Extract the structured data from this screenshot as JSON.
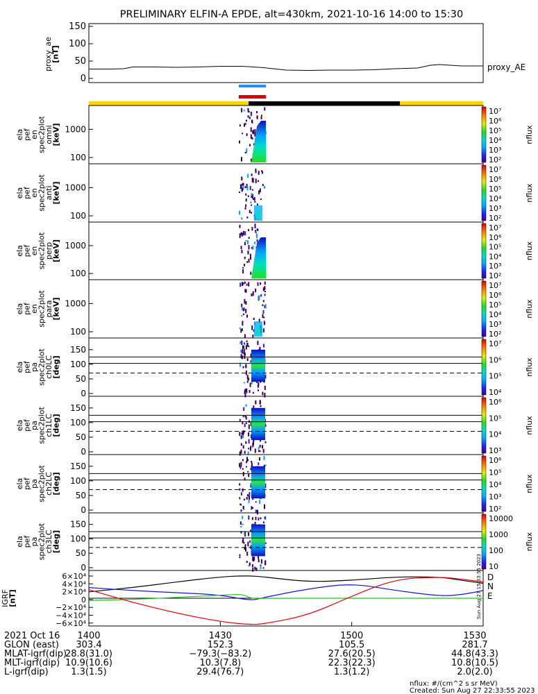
{
  "title": "PRELIMINARY ELFIN-A EPDE, alt=430km, 2021-10-16 14:00 to 15:30",
  "chart_data": [
    {
      "type": "line",
      "id": "proxy_ae",
      "ylabel": [
        "proxy_ae",
        "[nT]"
      ],
      "yticks": [
        "150",
        "100",
        "50",
        "0"
      ],
      "ylim": [
        0,
        150
      ],
      "legend": "proxy_AE",
      "x": [
        1400,
        1405,
        1408,
        1410,
        1415,
        1420,
        1425,
        1430,
        1435,
        1440,
        1445,
        1450,
        1455,
        1500,
        1505,
        1510,
        1515,
        1518,
        1520,
        1525,
        1530
      ],
      "y": [
        27,
        27,
        28,
        33,
        33,
        32,
        33,
        35,
        35,
        31,
        24,
        23,
        24,
        24,
        25,
        28,
        30,
        38,
        40,
        36,
        36
      ]
    },
    {
      "type": "heatmap",
      "id": "en_omni",
      "ylabel": [
        "ela",
        "pef",
        "en",
        "spec2plot",
        "omni",
        "[keV]"
      ],
      "yticks": [
        "1000",
        "100"
      ],
      "ylim": [
        60,
        7000
      ],
      "colorbar": {
        "label": "nflux",
        "ticks": [
          "10⁷",
          "10⁶",
          "10⁵",
          "10⁴",
          "10³",
          "10²"
        ]
      }
    },
    {
      "type": "heatmap",
      "id": "en_anti",
      "ylabel": [
        "ela",
        "pef",
        "en",
        "spec2plot",
        "anti",
        "[keV]"
      ],
      "yticks": [
        "1000",
        "100"
      ],
      "ylim": [
        60,
        7000
      ],
      "colorbar": {
        "label": "nflux",
        "ticks": [
          "10⁷",
          "10⁶",
          "10⁵",
          "10⁴",
          "10³",
          "10²"
        ]
      }
    },
    {
      "type": "heatmap",
      "id": "en_perp",
      "ylabel": [
        "ela",
        "pef",
        "en",
        "spec2plot",
        "perp",
        "[keV]"
      ],
      "yticks": [
        "1000",
        "100"
      ],
      "ylim": [
        60,
        7000
      ],
      "colorbar": {
        "label": "nflux",
        "ticks": [
          "10⁷",
          "10⁶",
          "10⁵",
          "10⁴",
          "10³",
          "10²"
        ]
      }
    },
    {
      "type": "heatmap",
      "id": "en_para",
      "ylabel": [
        "ela",
        "pef",
        "en",
        "spec2plot",
        "para",
        "[keV]"
      ],
      "yticks": [
        "1000",
        "100"
      ],
      "ylim": [
        60,
        7000
      ],
      "colorbar": {
        "label": "nflux",
        "ticks": [
          "10⁷",
          "10⁶",
          "10⁵",
          "10⁴",
          "10³",
          "10²"
        ]
      }
    },
    {
      "type": "heatmap",
      "id": "pa_ch0",
      "ylabel": [
        "ela",
        "pef",
        "pa",
        "spec2plot",
        "ch0LC",
        "[deg]"
      ],
      "yticks": [
        "150",
        "100",
        "50",
        "0"
      ],
      "ylim": [
        0,
        180
      ],
      "colorbar": {
        "label": "nflux",
        "ticks": [
          "10⁷",
          "10⁶",
          "10⁵",
          "10⁴"
        ]
      }
    },
    {
      "type": "heatmap",
      "id": "pa_ch1",
      "ylabel": [
        "ela",
        "pef",
        "pa",
        "spec2plot",
        "ch1LC",
        "[deg]"
      ],
      "yticks": [
        "150",
        "100",
        "50",
        "0"
      ],
      "ylim": [
        0,
        180
      ],
      "colorbar": {
        "label": "nflux",
        "ticks": [
          "10⁶",
          "10⁵",
          "10⁴",
          "10³"
        ]
      }
    },
    {
      "type": "heatmap",
      "id": "pa_ch2",
      "ylabel": [
        "ela",
        "pef",
        "pa",
        "spec2plot",
        "ch2LC",
        "[deg]"
      ],
      "yticks": [
        "150",
        "100",
        "50",
        "0"
      ],
      "ylim": [
        0,
        180
      ],
      "colorbar": {
        "label": "nflux",
        "ticks": [
          "10⁶",
          "10⁵",
          "10⁴",
          "10³",
          "10²"
        ]
      }
    },
    {
      "type": "heatmap",
      "id": "pa_ch3",
      "ylabel": [
        "ela",
        "pef",
        "pa",
        "spec2plot",
        "ch3LC",
        "[deg]"
      ],
      "yticks": [
        "150",
        "100",
        "50",
        "0"
      ],
      "ylim": [
        0,
        180
      ],
      "colorbar": {
        "label": "nflux",
        "ticks": [
          "10000",
          "1000",
          "100",
          "10"
        ]
      }
    },
    {
      "type": "line",
      "id": "igrf",
      "ylabel": [
        "IGRF",
        "[nT]"
      ],
      "yticks": [
        "6×10⁴",
        "4×10⁴",
        "2×10⁴",
        "0",
        "−2×10⁴",
        "−4×10⁴",
        "−6×10⁴"
      ],
      "ylim": [
        -65000,
        65000
      ],
      "series": [
        {
          "name": "D",
          "color": "#000000",
          "x": [
            1400,
            1410,
            1420,
            1430,
            1436,
            1440,
            1450,
            1500,
            1510,
            1520,
            1525,
            1530
          ],
          "y": [
            15000,
            25000,
            38000,
            50000,
            53000,
            50000,
            38000,
            42000,
            50000,
            50000,
            42000,
            35000
          ]
        },
        {
          "name": "N",
          "color": "#1010e0",
          "x": [
            1400,
            1410,
            1420,
            1430,
            1437,
            1440,
            1450,
            1500,
            1510,
            1520,
            1525,
            1530
          ],
          "y": [
            25000,
            18000,
            13000,
            8000,
            -6000,
            2000,
            22000,
            35000,
            18000,
            5000,
            8000,
            18000
          ]
        },
        {
          "name": "E",
          "color": "#20c020",
          "x": [
            1400,
            1410,
            1420,
            1430,
            1435,
            1437,
            1440,
            1450,
            1500,
            1510,
            1520,
            1530
          ],
          "y": [
            -5000,
            -3000,
            2000,
            7000,
            10000,
            -1000,
            0,
            0,
            0,
            0,
            0,
            0
          ]
        },
        {
          "name": "",
          "color": "#e00000",
          "x": [
            1400,
            1410,
            1420,
            1430,
            1437,
            1440,
            1450,
            1500,
            1510,
            1520,
            1525,
            1530
          ],
          "y": [
            20000,
            -10000,
            -35000,
            -55000,
            -62000,
            -60000,
            -40000,
            5000,
            45000,
            50000,
            45000,
            38000
          ]
        }
      ]
    }
  ],
  "xaxis": {
    "tick_times": [
      1400,
      1430,
      1500,
      1530
    ],
    "rows": [
      {
        "label": "2021 Oct 16",
        "values": [
          "1400",
          "1430",
          "1500",
          "1530"
        ]
      },
      {
        "label": "GLON (east)",
        "values": [
          "303.4",
          "152.3",
          "105.5",
          "281.7"
        ]
      },
      {
        "label": "MLAT-igrf(dip)",
        "values": [
          "28.8(31.0)",
          "−79.3(−83.2)",
          "27.6(20.5)",
          "44.8(43.3)"
        ]
      },
      {
        "label": "MLT-igrf(dip)",
        "values": [
          "10.9(10.6)",
          "10.3(7.8)",
          "22.3(22.3)",
          "10.8(10.5)"
        ]
      },
      {
        "label": "L-igrf(dip)",
        "values": [
          "1.3(1.5)",
          "29.4(76.7)",
          "1.3(1.2)",
          "2.0(2.0)"
        ]
      }
    ]
  },
  "footer": {
    "units": "nflux: #/(cm^2 s sr MeV)",
    "created": "Created: Sun Aug 27 22:33:55 2023",
    "side_stamp": "Sun Aug 27 15:33:55 2023"
  },
  "colors": {
    "sunlight": "#ffd700",
    "shadow": "#000000",
    "blue_marker": "#1e90ff",
    "red_marker": "#e00000"
  }
}
